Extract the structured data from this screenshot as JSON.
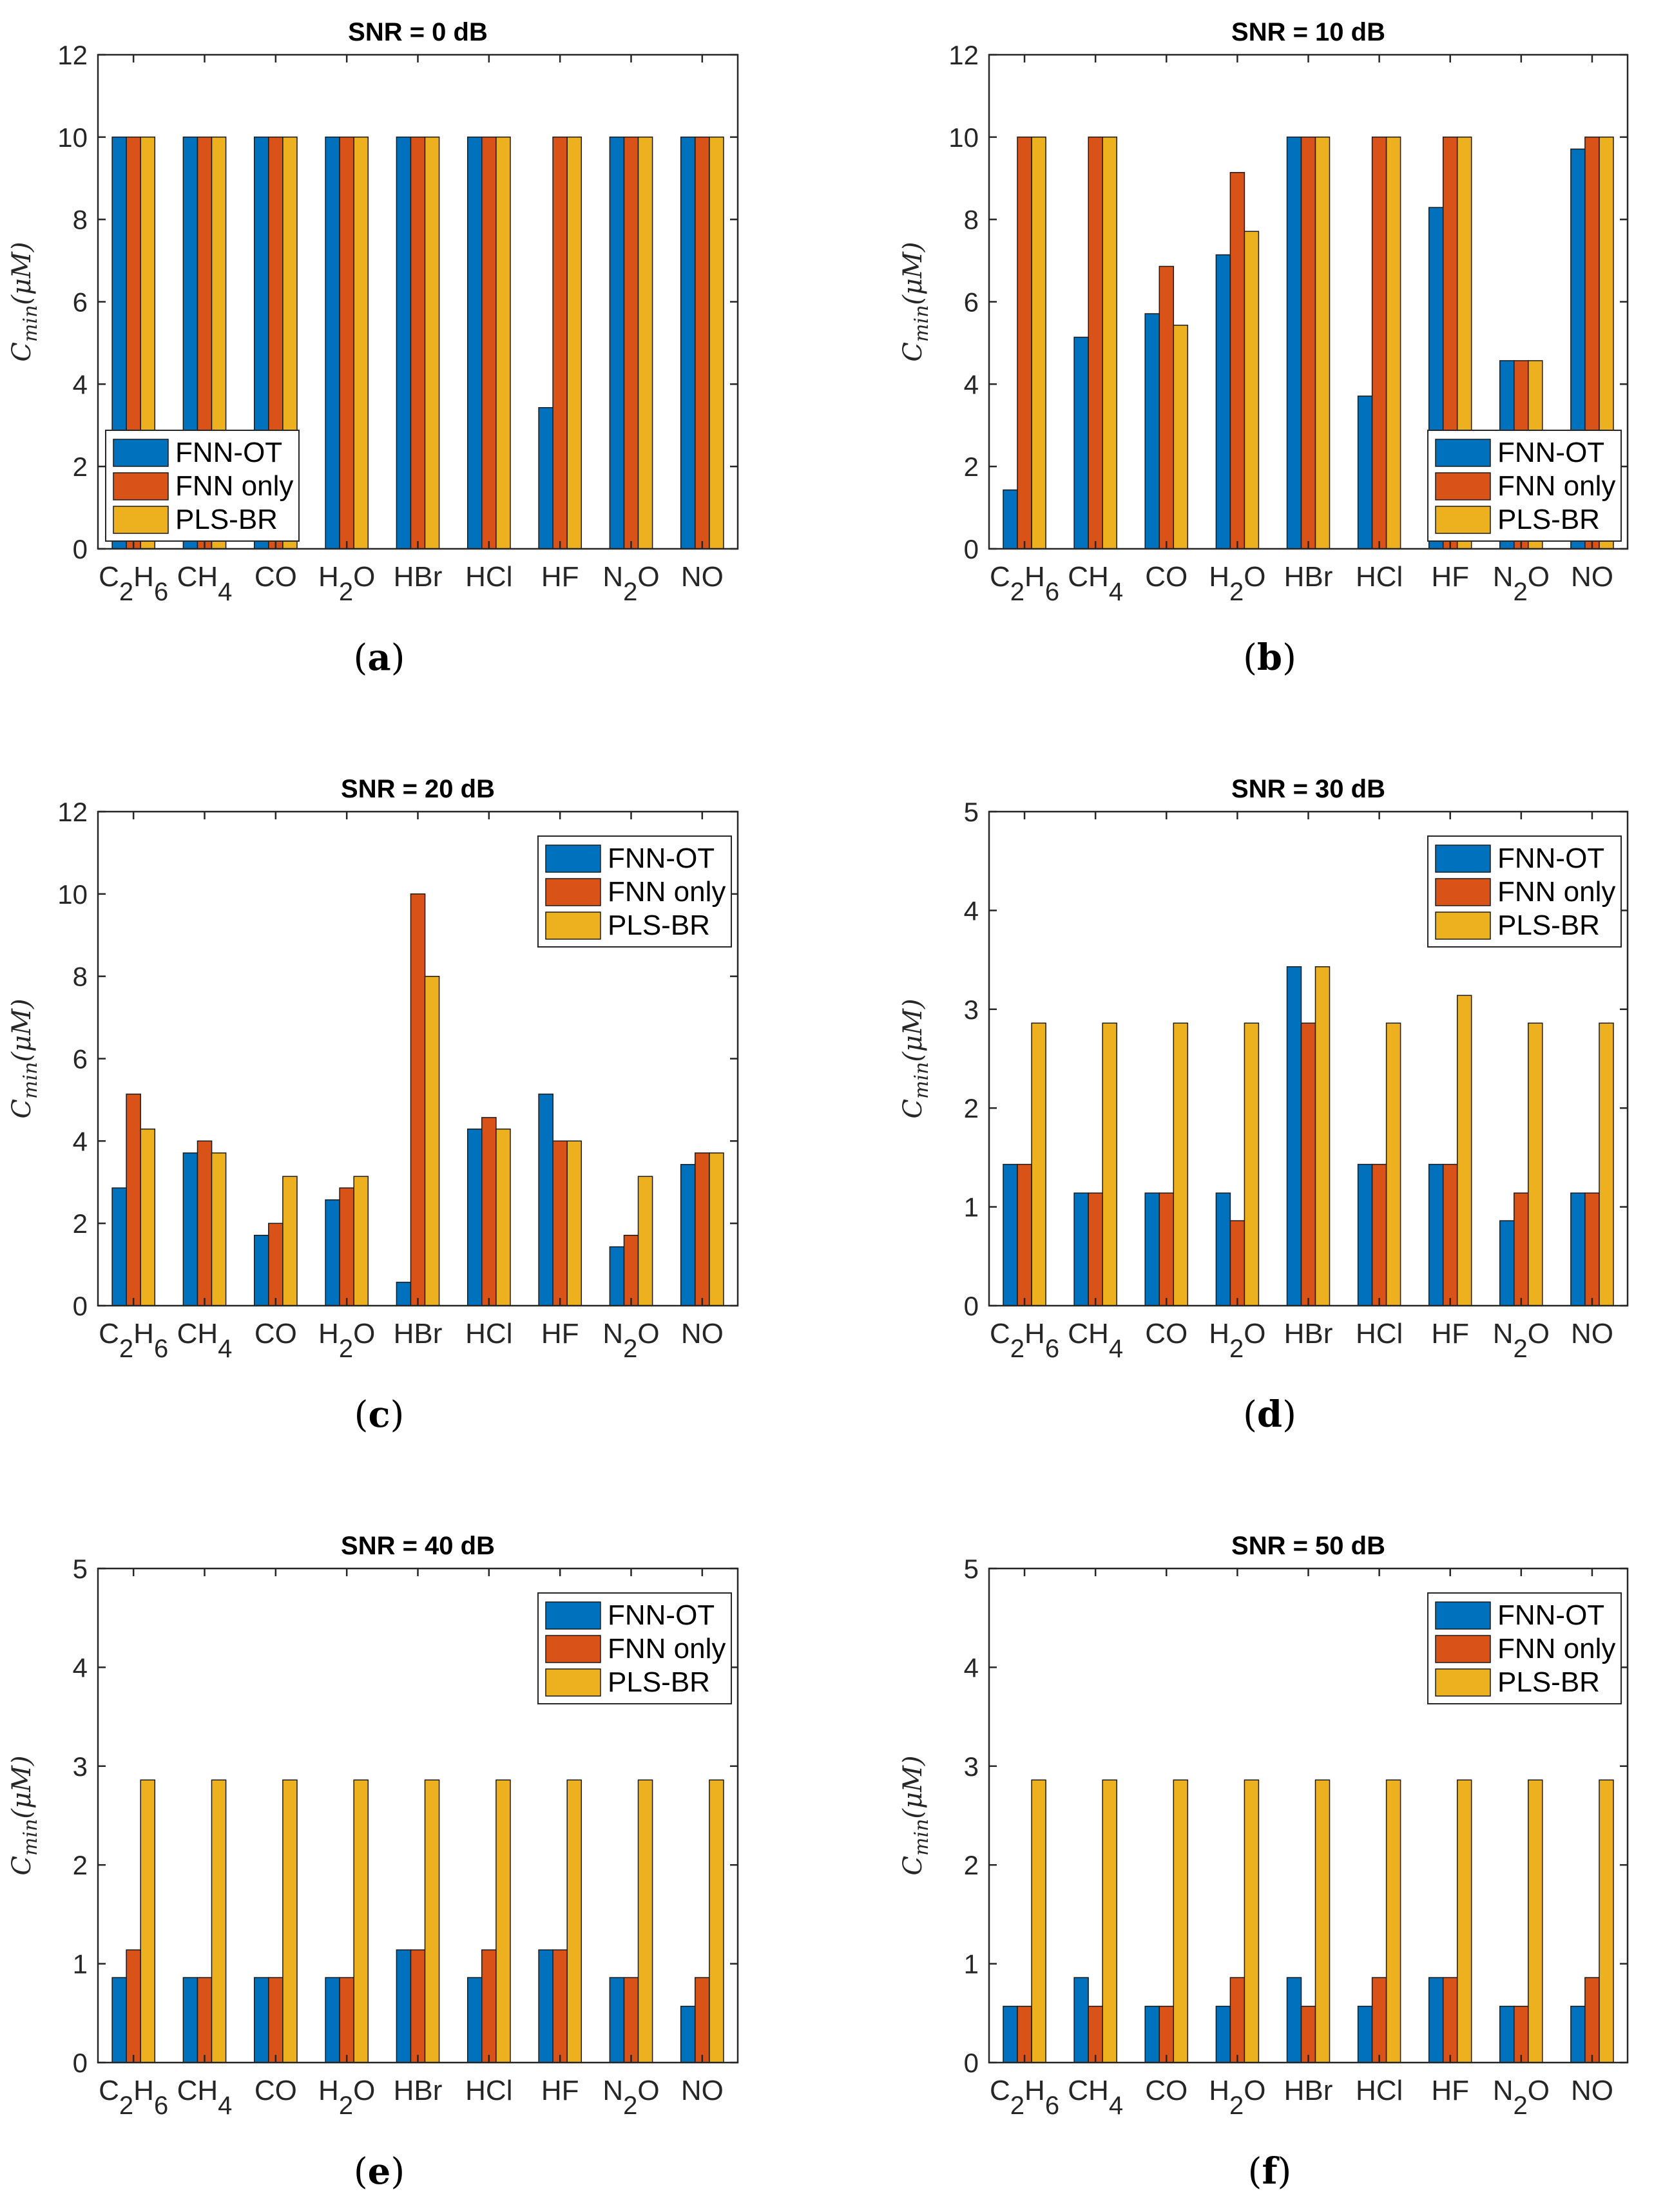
{
  "colors": {
    "FNN-OT": "#0072BD",
    "FNN only": "#D95319",
    "PLS-BR": "#EDB120"
  },
  "chart_data": [
    {
      "type": "bar",
      "title": "SNR = 0 dB",
      "panel_label": "a",
      "ylabel": "C_min(μM)",
      "ylabel_main": "C",
      "ylabel_sub": "min",
      "ylabel_rest": "(μM)",
      "ylim": [
        0,
        12
      ],
      "yticks": [
        0,
        2,
        4,
        6,
        8,
        10,
        12
      ],
      "legend_position": "bottom-left",
      "categories": [
        {
          "main": "C",
          "sub1": "2",
          "mid": "H",
          "sub2": "6",
          "end": ""
        },
        {
          "main": "CH",
          "sub1": "4",
          "mid": "",
          "sub2": "",
          "end": ""
        },
        {
          "main": "CO",
          "sub1": "",
          "mid": "",
          "sub2": "",
          "end": ""
        },
        {
          "main": "H",
          "sub1": "2",
          "mid": "O",
          "sub2": "",
          "end": ""
        },
        {
          "main": "HBr",
          "sub1": "",
          "mid": "",
          "sub2": "",
          "end": ""
        },
        {
          "main": "HCl",
          "sub1": "",
          "mid": "",
          "sub2": "",
          "end": ""
        },
        {
          "main": "HF",
          "sub1": "",
          "mid": "",
          "sub2": "",
          "end": ""
        },
        {
          "main": "N",
          "sub1": "2",
          "mid": "O",
          "sub2": "",
          "end": ""
        },
        {
          "main": "NO",
          "sub1": "",
          "mid": "",
          "sub2": "",
          "end": ""
        }
      ],
      "series": [
        {
          "name": "FNN-OT",
          "values": [
            10,
            10,
            10,
            10,
            10,
            10,
            3.43,
            10,
            10
          ]
        },
        {
          "name": "FNN only",
          "values": [
            10,
            10,
            10,
            10,
            10,
            10,
            10,
            10,
            10
          ]
        },
        {
          "name": "PLS-BR",
          "values": [
            10,
            10,
            10,
            10,
            10,
            10,
            10,
            10,
            10
          ]
        }
      ]
    },
    {
      "type": "bar",
      "title": "SNR = 10 dB",
      "panel_label": "b",
      "ylabel": "C_min(μM)",
      "ylabel_main": "C",
      "ylabel_sub": "min",
      "ylabel_rest": "(μM)",
      "ylim": [
        0,
        12
      ],
      "yticks": [
        0,
        2,
        4,
        6,
        8,
        10,
        12
      ],
      "legend_position": "bottom-right",
      "categories": [
        {
          "main": "C",
          "sub1": "2",
          "mid": "H",
          "sub2": "6",
          "end": ""
        },
        {
          "main": "CH",
          "sub1": "4",
          "mid": "",
          "sub2": "",
          "end": ""
        },
        {
          "main": "CO",
          "sub1": "",
          "mid": "",
          "sub2": "",
          "end": ""
        },
        {
          "main": "H",
          "sub1": "2",
          "mid": "O",
          "sub2": "",
          "end": ""
        },
        {
          "main": "HBr",
          "sub1": "",
          "mid": "",
          "sub2": "",
          "end": ""
        },
        {
          "main": "HCl",
          "sub1": "",
          "mid": "",
          "sub2": "",
          "end": ""
        },
        {
          "main": "HF",
          "sub1": "",
          "mid": "",
          "sub2": "",
          "end": ""
        },
        {
          "main": "N",
          "sub1": "2",
          "mid": "O",
          "sub2": "",
          "end": ""
        },
        {
          "main": "NO",
          "sub1": "",
          "mid": "",
          "sub2": "",
          "end": ""
        }
      ],
      "series": [
        {
          "name": "FNN-OT",
          "values": [
            1.43,
            5.14,
            5.71,
            7.14,
            10,
            3.71,
            8.29,
            4.57,
            9.71
          ]
        },
        {
          "name": "FNN only",
          "values": [
            10,
            10,
            6.86,
            9.14,
            10,
            10,
            10,
            4.57,
            10
          ]
        },
        {
          "name": "PLS-BR",
          "values": [
            10,
            10,
            5.43,
            7.71,
            10,
            10,
            10,
            4.57,
            10
          ]
        }
      ]
    },
    {
      "type": "bar",
      "title": "SNR = 20 dB",
      "panel_label": "c",
      "ylabel": "C_min(μM)",
      "ylabel_main": "C",
      "ylabel_sub": "min",
      "ylabel_rest": "(μM)",
      "ylim": [
        0,
        12
      ],
      "yticks": [
        0,
        2,
        4,
        6,
        8,
        10,
        12
      ],
      "legend_position": "top-right",
      "categories": [
        {
          "main": "C",
          "sub1": "2",
          "mid": "H",
          "sub2": "6",
          "end": ""
        },
        {
          "main": "CH",
          "sub1": "4",
          "mid": "",
          "sub2": "",
          "end": ""
        },
        {
          "main": "CO",
          "sub1": "",
          "mid": "",
          "sub2": "",
          "end": ""
        },
        {
          "main": "H",
          "sub1": "2",
          "mid": "O",
          "sub2": "",
          "end": ""
        },
        {
          "main": "HBr",
          "sub1": "",
          "mid": "",
          "sub2": "",
          "end": ""
        },
        {
          "main": "HCl",
          "sub1": "",
          "mid": "",
          "sub2": "",
          "end": ""
        },
        {
          "main": "HF",
          "sub1": "",
          "mid": "",
          "sub2": "",
          "end": ""
        },
        {
          "main": "N",
          "sub1": "2",
          "mid": "O",
          "sub2": "",
          "end": ""
        },
        {
          "main": "NO",
          "sub1": "",
          "mid": "",
          "sub2": "",
          "end": ""
        }
      ],
      "series": [
        {
          "name": "FNN-OT",
          "values": [
            2.86,
            3.71,
            1.71,
            2.57,
            0.57,
            4.29,
            5.14,
            1.43,
            3.43
          ]
        },
        {
          "name": "FNN only",
          "values": [
            5.14,
            4.0,
            2.0,
            2.86,
            10,
            4.57,
            4.0,
            1.71,
            3.71
          ]
        },
        {
          "name": "PLS-BR",
          "values": [
            4.29,
            3.71,
            3.14,
            3.14,
            8.0,
            4.29,
            4.0,
            3.14,
            3.71
          ]
        }
      ]
    },
    {
      "type": "bar",
      "title": "SNR = 30 dB",
      "panel_label": "d",
      "ylabel": "C_min(μM)",
      "ylabel_main": "C",
      "ylabel_sub": "min",
      "ylabel_rest": "(μM)",
      "ylim": [
        0,
        5
      ],
      "yticks": [
        0,
        1,
        2,
        3,
        4,
        5
      ],
      "legend_position": "top-right",
      "categories": [
        {
          "main": "C",
          "sub1": "2",
          "mid": "H",
          "sub2": "6",
          "end": ""
        },
        {
          "main": "CH",
          "sub1": "4",
          "mid": "",
          "sub2": "",
          "end": ""
        },
        {
          "main": "CO",
          "sub1": "",
          "mid": "",
          "sub2": "",
          "end": ""
        },
        {
          "main": "H",
          "sub1": "2",
          "mid": "O",
          "sub2": "",
          "end": ""
        },
        {
          "main": "HBr",
          "sub1": "",
          "mid": "",
          "sub2": "",
          "end": ""
        },
        {
          "main": "HCl",
          "sub1": "",
          "mid": "",
          "sub2": "",
          "end": ""
        },
        {
          "main": "HF",
          "sub1": "",
          "mid": "",
          "sub2": "",
          "end": ""
        },
        {
          "main": "N",
          "sub1": "2",
          "mid": "O",
          "sub2": "",
          "end": ""
        },
        {
          "main": "NO",
          "sub1": "",
          "mid": "",
          "sub2": "",
          "end": ""
        }
      ],
      "series": [
        {
          "name": "FNN-OT",
          "values": [
            1.43,
            1.14,
            1.14,
            1.14,
            3.43,
            1.43,
            1.43,
            0.86,
            1.14
          ]
        },
        {
          "name": "FNN only",
          "values": [
            1.43,
            1.14,
            1.14,
            0.86,
            2.86,
            1.43,
            1.43,
            1.14,
            1.14
          ]
        },
        {
          "name": "PLS-BR",
          "values": [
            2.86,
            2.86,
            2.86,
            2.86,
            3.43,
            2.86,
            3.14,
            2.86,
            2.86
          ]
        }
      ]
    },
    {
      "type": "bar",
      "title": "SNR = 40 dB",
      "panel_label": "e",
      "ylabel": "C_min(μM)",
      "ylabel_main": "C",
      "ylabel_sub": "min",
      "ylabel_rest": "(μM)",
      "ylim": [
        0,
        5
      ],
      "yticks": [
        0,
        1,
        2,
        3,
        4,
        5
      ],
      "legend_position": "top-right",
      "categories": [
        {
          "main": "C",
          "sub1": "2",
          "mid": "H",
          "sub2": "6",
          "end": ""
        },
        {
          "main": "CH",
          "sub1": "4",
          "mid": "",
          "sub2": "",
          "end": ""
        },
        {
          "main": "CO",
          "sub1": "",
          "mid": "",
          "sub2": "",
          "end": ""
        },
        {
          "main": "H",
          "sub1": "2",
          "mid": "O",
          "sub2": "",
          "end": ""
        },
        {
          "main": "HBr",
          "sub1": "",
          "mid": "",
          "sub2": "",
          "end": ""
        },
        {
          "main": "HCl",
          "sub1": "",
          "mid": "",
          "sub2": "",
          "end": ""
        },
        {
          "main": "HF",
          "sub1": "",
          "mid": "",
          "sub2": "",
          "end": ""
        },
        {
          "main": "N",
          "sub1": "2",
          "mid": "O",
          "sub2": "",
          "end": ""
        },
        {
          "main": "NO",
          "sub1": "",
          "mid": "",
          "sub2": "",
          "end": ""
        }
      ],
      "series": [
        {
          "name": "FNN-OT",
          "values": [
            0.86,
            0.86,
            0.86,
            0.86,
            1.14,
            0.86,
            1.14,
            0.86,
            0.57
          ]
        },
        {
          "name": "FNN only",
          "values": [
            1.14,
            0.86,
            0.86,
            0.86,
            1.14,
            1.14,
            1.14,
            0.86,
            0.86
          ]
        },
        {
          "name": "PLS-BR",
          "values": [
            2.86,
            2.86,
            2.86,
            2.86,
            2.86,
            2.86,
            2.86,
            2.86,
            2.86
          ]
        }
      ]
    },
    {
      "type": "bar",
      "title": "SNR = 50 dB",
      "panel_label": "f",
      "ylabel": "C_min(μM)",
      "ylabel_main": "C",
      "ylabel_sub": "min",
      "ylabel_rest": "(μM)",
      "ylim": [
        0,
        5
      ],
      "yticks": [
        0,
        1,
        2,
        3,
        4,
        5
      ],
      "legend_position": "top-right",
      "categories": [
        {
          "main": "C",
          "sub1": "2",
          "mid": "H",
          "sub2": "6",
          "end": ""
        },
        {
          "main": "CH",
          "sub1": "4",
          "mid": "",
          "sub2": "",
          "end": ""
        },
        {
          "main": "CO",
          "sub1": "",
          "mid": "",
          "sub2": "",
          "end": ""
        },
        {
          "main": "H",
          "sub1": "2",
          "mid": "O",
          "sub2": "",
          "end": ""
        },
        {
          "main": "HBr",
          "sub1": "",
          "mid": "",
          "sub2": "",
          "end": ""
        },
        {
          "main": "HCl",
          "sub1": "",
          "mid": "",
          "sub2": "",
          "end": ""
        },
        {
          "main": "HF",
          "sub1": "",
          "mid": "",
          "sub2": "",
          "end": ""
        },
        {
          "main": "N",
          "sub1": "2",
          "mid": "O",
          "sub2": "",
          "end": ""
        },
        {
          "main": "NO",
          "sub1": "",
          "mid": "",
          "sub2": "",
          "end": ""
        }
      ],
      "series": [
        {
          "name": "FNN-OT",
          "values": [
            0.57,
            0.86,
            0.57,
            0.57,
            0.86,
            0.57,
            0.86,
            0.57,
            0.57
          ]
        },
        {
          "name": "FNN only",
          "values": [
            0.57,
            0.57,
            0.57,
            0.86,
            0.57,
            0.86,
            0.86,
            0.57,
            0.86
          ]
        },
        {
          "name": "PLS-BR",
          "values": [
            2.86,
            2.86,
            2.86,
            2.86,
            2.86,
            2.86,
            2.86,
            2.86,
            2.86
          ]
        }
      ]
    }
  ]
}
